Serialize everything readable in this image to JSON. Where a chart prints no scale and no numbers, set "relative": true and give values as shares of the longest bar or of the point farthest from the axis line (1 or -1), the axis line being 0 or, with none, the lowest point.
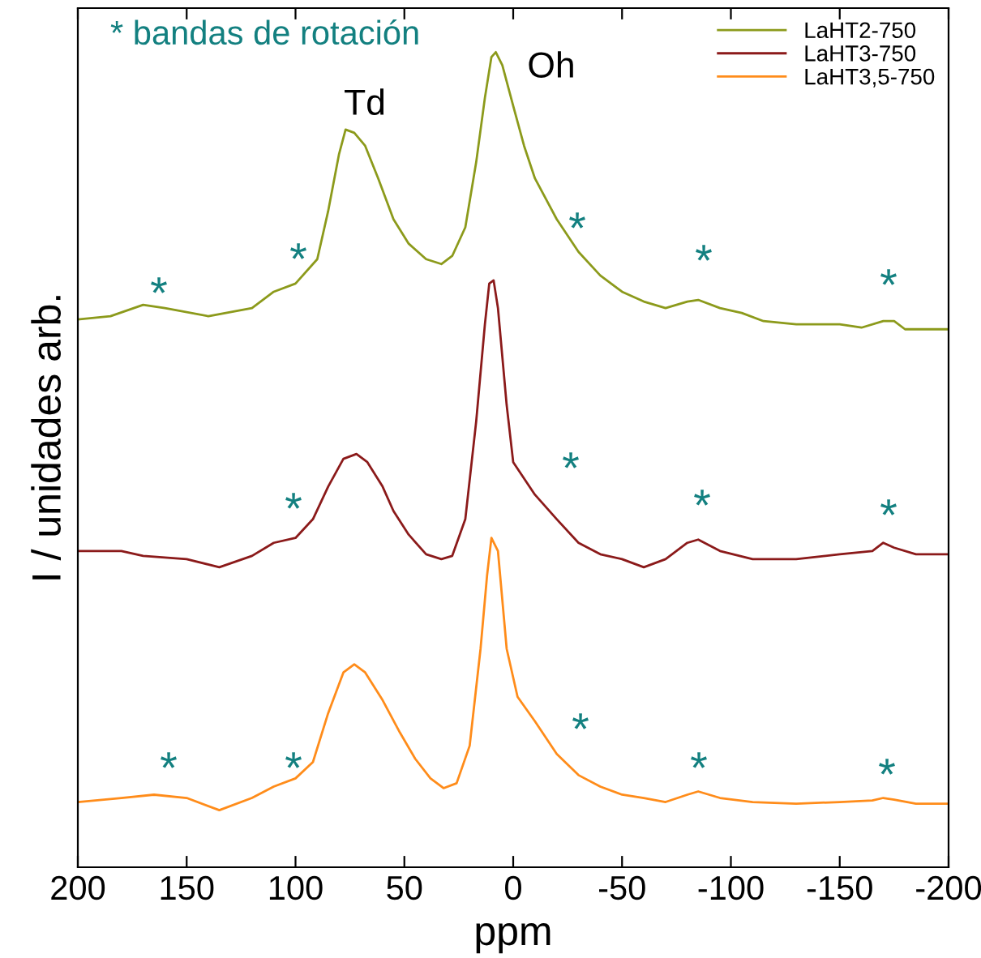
{
  "chart_data": {
    "type": "line",
    "relative": true,
    "xlabel": "ppm",
    "ylabel": "I / unidades arb.",
    "xlim": [
      200,
      -200
    ],
    "xticks": [
      200,
      150,
      100,
      50,
      0,
      -50,
      -100,
      -150,
      -200
    ],
    "tick_labels": "x",
    "grid": false,
    "legend": "top right",
    "marker": "none",
    "line_style": "solid",
    "series": [
      {
        "name": "LaHT2-750",
        "color": "#8c9a1b",
        "x": [
          200,
          185,
          170,
          160,
          140,
          120,
          110,
          100,
          90,
          85,
          80,
          77,
          73,
          68,
          62,
          55,
          48,
          40,
          33,
          28,
          22,
          17,
          13,
          10,
          8,
          5,
          0,
          -5,
          -10,
          -20,
          -30,
          -40,
          -50,
          -60,
          -70,
          -80,
          -85,
          -95,
          -105,
          -115,
          -130,
          -150,
          -160,
          -170,
          -175,
          -180,
          -190,
          -200
        ],
        "values": [
          0.672,
          0.676,
          0.69,
          0.686,
          0.676,
          0.686,
          0.706,
          0.716,
          0.746,
          0.805,
          0.875,
          0.905,
          0.901,
          0.885,
          0.845,
          0.795,
          0.765,
          0.746,
          0.74,
          0.75,
          0.785,
          0.865,
          0.944,
          0.994,
          1.0,
          0.984,
          0.934,
          0.885,
          0.845,
          0.795,
          0.755,
          0.726,
          0.706,
          0.694,
          0.686,
          0.694,
          0.696,
          0.686,
          0.68,
          0.67,
          0.666,
          0.666,
          0.662,
          0.67,
          0.67,
          0.66,
          0.66,
          0.66
        ]
      },
      {
        "name": "LaHT3-750",
        "color": "#8b1a1a",
        "x": [
          200,
          180,
          170,
          150,
          135,
          120,
          110,
          100,
          92,
          85,
          78,
          72,
          67,
          60,
          55,
          48,
          40,
          33,
          28,
          22,
          17,
          13,
          11,
          9,
          7,
          3,
          0,
          -10,
          -20,
          -30,
          -40,
          -50,
          -60,
          -70,
          -80,
          -85,
          -95,
          -110,
          -130,
          -150,
          -165,
          -170,
          -175,
          -185,
          -200
        ],
        "values": [
          0.388,
          0.388,
          0.382,
          0.378,
          0.368,
          0.382,
          0.398,
          0.404,
          0.427,
          0.467,
          0.501,
          0.507,
          0.497,
          0.467,
          0.437,
          0.408,
          0.384,
          0.378,
          0.382,
          0.427,
          0.547,
          0.666,
          0.716,
          0.72,
          0.686,
          0.567,
          0.497,
          0.457,
          0.427,
          0.398,
          0.384,
          0.378,
          0.368,
          0.378,
          0.398,
          0.402,
          0.388,
          0.378,
          0.378,
          0.384,
          0.388,
          0.398,
          0.392,
          0.384,
          0.384
        ]
      },
      {
        "name": "LaHT3,5-750",
        "color": "#ff8c1a",
        "x": [
          200,
          180,
          165,
          150,
          135,
          120,
          110,
          100,
          92,
          85,
          78,
          73,
          68,
          60,
          52,
          45,
          38,
          32,
          26,
          20,
          15,
          12,
          10,
          7,
          3,
          -2,
          -10,
          -20,
          -30,
          -40,
          -50,
          -60,
          -70,
          -80,
          -85,
          -95,
          -110,
          -130,
          -150,
          -165,
          -170,
          -175,
          -185,
          -200
        ],
        "values": [
          0.08,
          0.085,
          0.089,
          0.085,
          0.07,
          0.085,
          0.099,
          0.109,
          0.129,
          0.189,
          0.239,
          0.249,
          0.239,
          0.205,
          0.165,
          0.133,
          0.109,
          0.097,
          0.103,
          0.149,
          0.268,
          0.358,
          0.404,
          0.388,
          0.268,
          0.209,
          0.179,
          0.139,
          0.113,
          0.099,
          0.089,
          0.085,
          0.08,
          0.089,
          0.093,
          0.085,
          0.08,
          0.078,
          0.08,
          0.082,
          0.085,
          0.083,
          0.078,
          0.078
        ]
      }
    ],
    "annotations": [
      "* bandas de rotación",
      "Td",
      "Oh",
      "*",
      "*",
      "*",
      "*",
      "*",
      "*",
      "*",
      "*",
      "*",
      "*",
      "*",
      "*",
      "*",
      "*"
    ]
  }
}
